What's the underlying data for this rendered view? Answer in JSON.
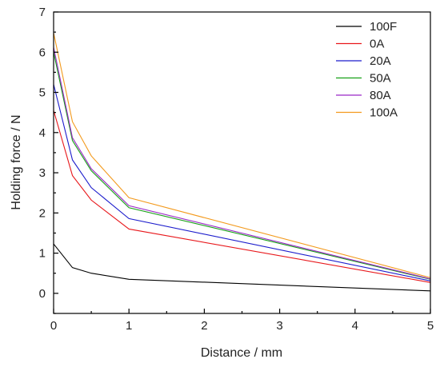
{
  "chart_data": {
    "type": "line",
    "xlabel": "Distance / mm",
    "ylabel": "Holding force / N",
    "xlim": [
      0,
      5
    ],
    "ylim": [
      -0.5,
      7
    ],
    "x_ticks": [
      "0",
      "1",
      "2",
      "3",
      "4",
      "5"
    ],
    "y_ticks": [
      "0",
      "1",
      "2",
      "3",
      "4",
      "5",
      "6",
      "7"
    ],
    "grid": false,
    "legend_position": "top-right",
    "series": [
      {
        "name": "100F",
        "color": "#000000",
        "x": [
          0,
          0.25,
          0.5,
          1,
          5
        ],
        "y": [
          1.23,
          0.64,
          0.5,
          0.35,
          0.06
        ]
      },
      {
        "name": "0A",
        "color": "#e8181c",
        "x": [
          0,
          0.25,
          0.5,
          1,
          5
        ],
        "y": [
          4.55,
          2.93,
          2.32,
          1.6,
          0.27
        ]
      },
      {
        "name": "20A",
        "color": "#1c1ccc",
        "x": [
          0,
          0.25,
          0.5,
          1,
          5
        ],
        "y": [
          5.2,
          3.32,
          2.63,
          1.86,
          0.31
        ]
      },
      {
        "name": "50A",
        "color": "#16a016",
        "x": [
          0,
          0.25,
          0.5,
          1,
          5
        ],
        "y": [
          6.0,
          3.8,
          3.05,
          2.13,
          0.35
        ]
      },
      {
        "name": "80A",
        "color": "#9b27c7",
        "x": [
          0,
          0.25,
          0.5,
          1,
          5
        ],
        "y": [
          6.12,
          3.87,
          3.1,
          2.18,
          0.36
        ]
      },
      {
        "name": "100A",
        "color": "#f39a1d",
        "x": [
          0,
          0.25,
          0.5,
          1,
          5
        ],
        "y": [
          6.48,
          4.27,
          3.42,
          2.38,
          0.39
        ]
      }
    ]
  }
}
